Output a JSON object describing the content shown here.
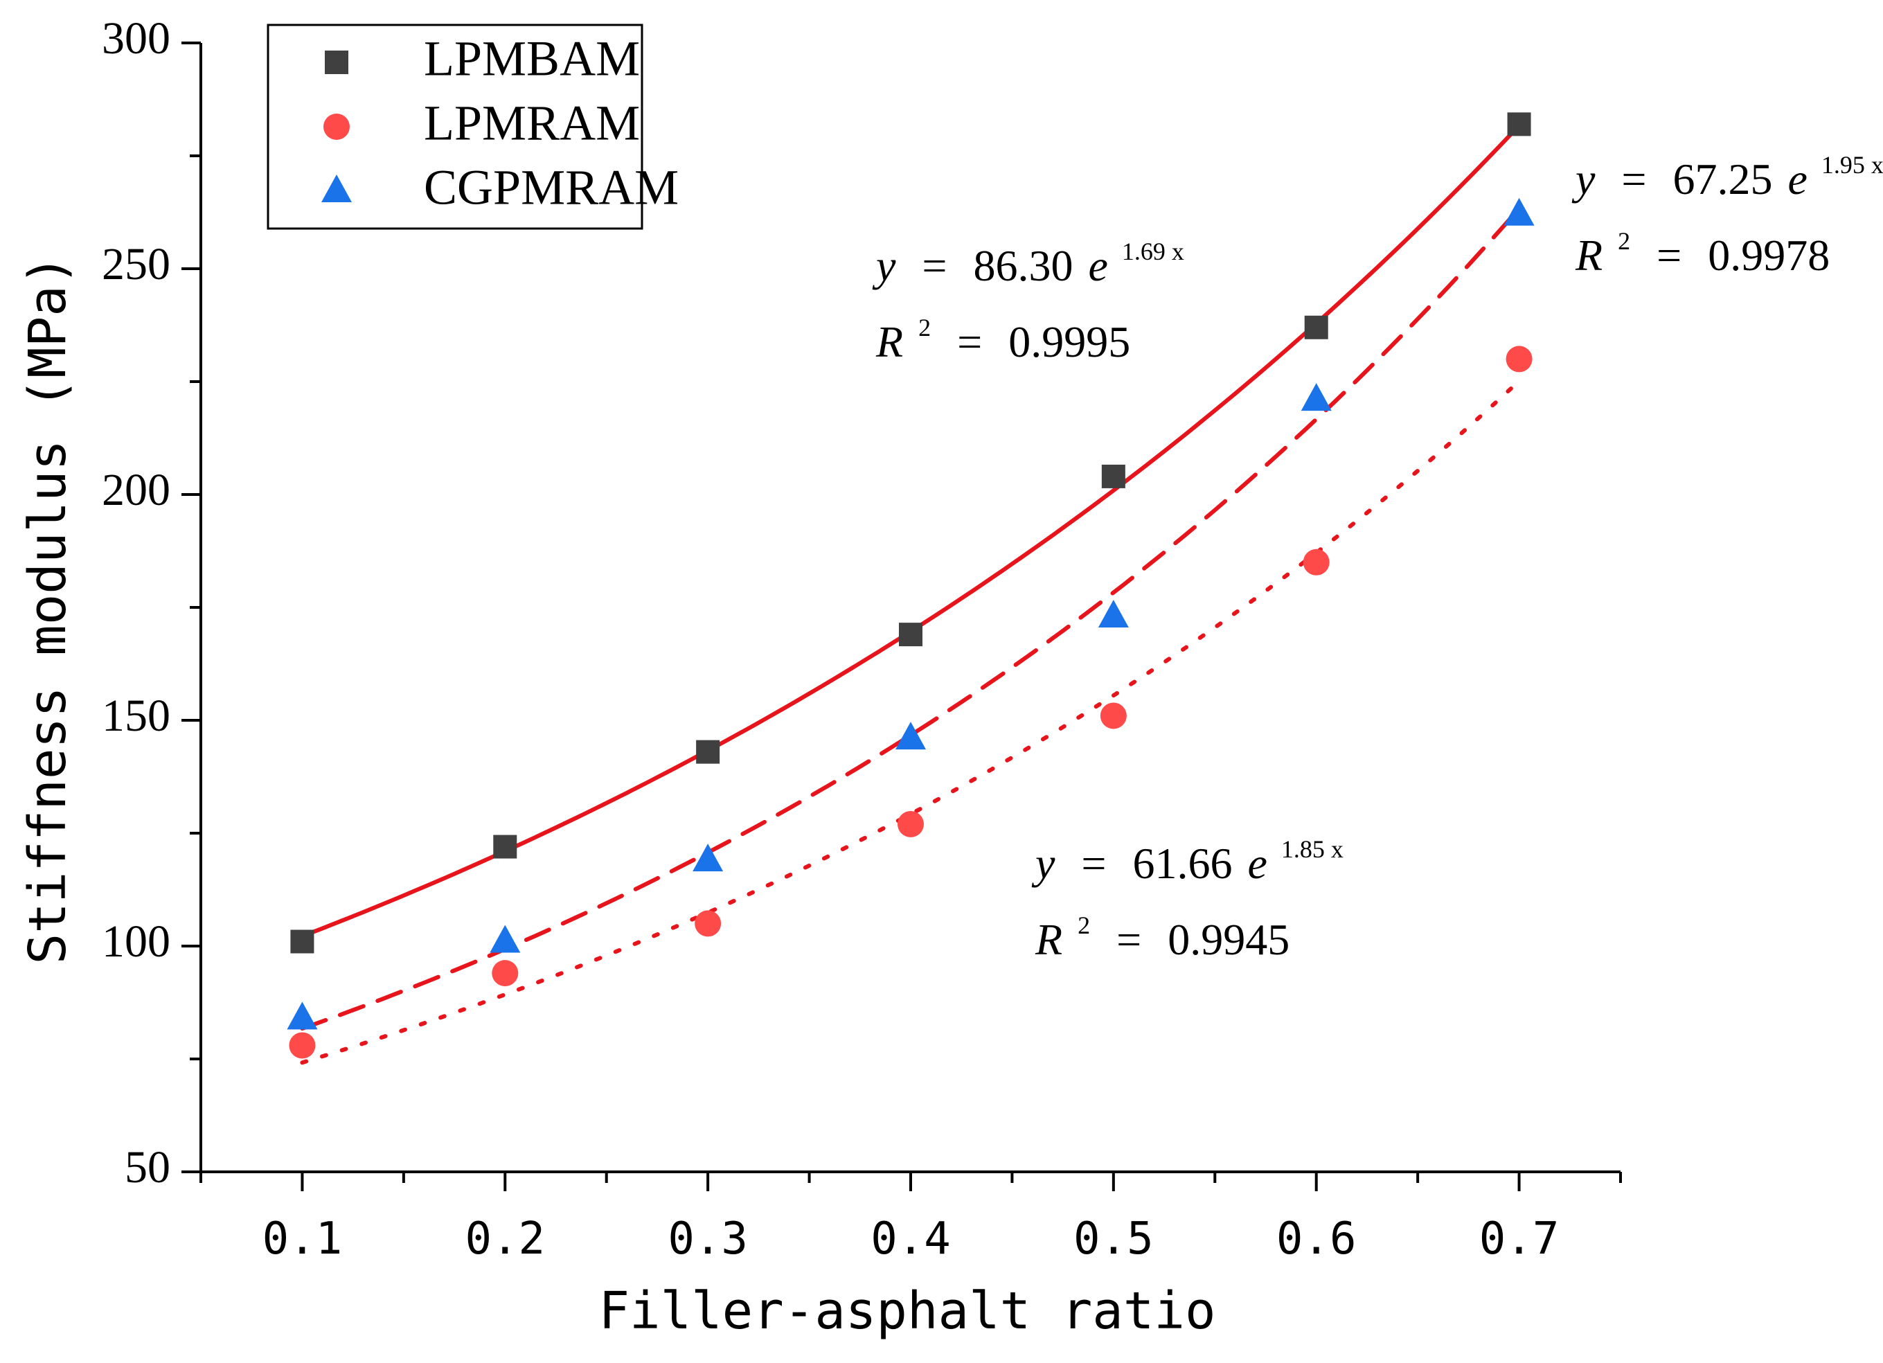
{
  "chart_data": {
    "type": "scatter",
    "title": "",
    "xlabel": "Filler-asphalt ratio",
    "ylabel": "Stiffness modulus (MPa)",
    "xlim": [
      0.05,
      0.75
    ],
    "ylim": [
      50,
      300
    ],
    "x": [
      0.1,
      0.2,
      0.3,
      0.4,
      0.5,
      0.6,
      0.7
    ],
    "x_tick_labels": [
      "0.1",
      "0.2",
      "0.3",
      "0.4",
      "0.5",
      "0.6",
      "0.7"
    ],
    "y_ticks": [
      50,
      100,
      150,
      200,
      250,
      300
    ],
    "y_tick_labels": [
      "50",
      "100",
      "150",
      "200",
      "250",
      "300"
    ],
    "legend_position": "top-left",
    "series": [
      {
        "name": "LPMBAM",
        "marker": "square",
        "color": "#404040",
        "values": [
          101,
          122,
          143,
          169,
          204,
          237,
          282
        ],
        "fit": {
          "a": 86.3,
          "b": 1.69,
          "line": "solid",
          "color": "#e8141c"
        },
        "equation": {
          "y": "y",
          "eq": "=",
          "coef": "86.30",
          "e": "e",
          "exp": "1.69 x",
          "r": "R",
          "r_exp": "2",
          "r_eq": "=",
          "r2": "0.9995"
        }
      },
      {
        "name": "LPMRAM",
        "marker": "circle",
        "color": "#ff4a4a",
        "values": [
          78,
          94,
          105,
          127,
          151,
          185,
          230
        ],
        "fit": {
          "a": 61.66,
          "b": 1.85,
          "line": "dotted",
          "color": "#e8141c"
        },
        "equation": {
          "y": "y",
          "eq": "=",
          "coef": "61.66",
          "e": "e",
          "exp": "1.85 x",
          "r": "R",
          "r_exp": "2",
          "r_eq": "=",
          "r2": "0.9945"
        }
      },
      {
        "name": "CGPMRAM",
        "marker": "triangle",
        "color": "#1a73e8",
        "values": [
          84,
          101,
          119,
          146,
          173,
          221,
          262
        ],
        "fit": {
          "a": 67.25,
          "b": 1.95,
          "line": "dashed",
          "color": "#e8141c"
        },
        "equation": {
          "y": "y",
          "eq": "=",
          "coef": "67.25",
          "e": "e",
          "exp": "1.95 x",
          "r": "R",
          "r_exp": "2",
          "r_eq": "=",
          "r2": "0.9978"
        }
      }
    ]
  }
}
